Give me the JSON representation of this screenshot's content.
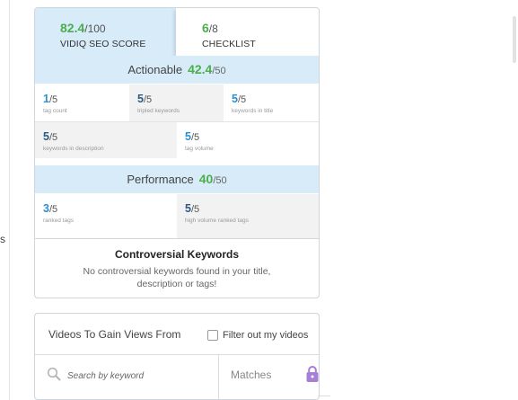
{
  "left_fragment": "s",
  "seo_score": {
    "value": "82.4",
    "max": "/100",
    "label": "VIDIQ SEO SCORE"
  },
  "checklist": {
    "value": "6",
    "max": "/8",
    "label": "CHECKLIST"
  },
  "actionable": {
    "title": "Actionable",
    "score": "42.4",
    "max": "/50",
    "items": [
      {
        "value": "1",
        "max": "/5",
        "label": "tag count"
      },
      {
        "value": "5",
        "max": "/5",
        "label": "tripled keywords"
      },
      {
        "value": "5",
        "max": "/5",
        "label": "keywords in title"
      },
      {
        "value": "5",
        "max": "/5",
        "label": "keywords in description"
      },
      {
        "value": "5",
        "max": "/5",
        "label": "tag volume"
      }
    ]
  },
  "performance": {
    "title": "Performance",
    "score": "40",
    "max": "/50",
    "items": [
      {
        "value": "3",
        "max": "/5",
        "label": "ranked tags"
      },
      {
        "value": "5",
        "max": "/5",
        "label": "high volume ranked tags"
      }
    ]
  },
  "controversial": {
    "title": "Controversial Keywords",
    "description": "No controversial keywords found in your title, description or tags!"
  },
  "videos": {
    "title": "Videos To Gain Views From",
    "filter_label": "Filter out my videos",
    "filter_checked": false,
    "search_placeholder": "Search by keyword",
    "matches_label": "Matches"
  },
  "colors": {
    "score_green": "#4cae4c",
    "header_blue": "#d7ebf8",
    "lock_purple": "#a77fd6"
  }
}
